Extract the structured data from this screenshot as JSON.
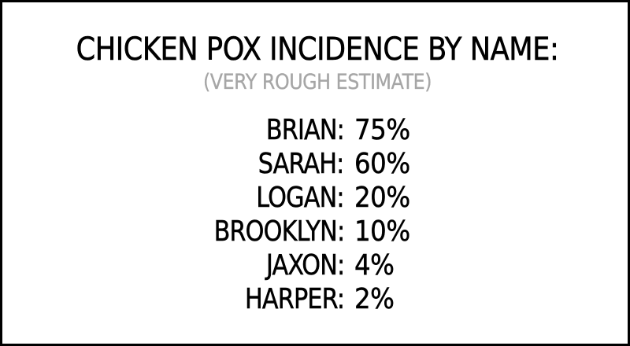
{
  "title": "CHICKEN POX INCIDENCE BY NAME:",
  "subtitle": "(VERY ROUGH ESTIMATE)",
  "rows": [
    {
      "name": "BRIAN:",
      "value": "75%"
    },
    {
      "name": "SARAH:",
      "value": "60%"
    },
    {
      "name": "LOGAN:",
      "value": "20%"
    },
    {
      "name": "BROOKLYN:",
      "value": "10%"
    },
    {
      "name": "JAXON:",
      "value": "4%"
    },
    {
      "name": "HARPER:",
      "value": "2%"
    }
  ]
}
